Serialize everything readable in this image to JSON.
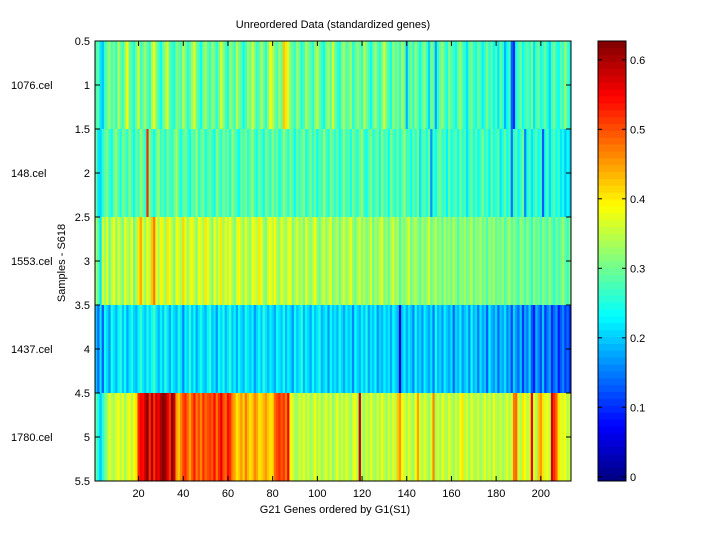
{
  "chart_data": {
    "type": "heatmap",
    "title": "Unreordered Data (standardized genes)",
    "xlabel": "G21 Genes ordered by G1(S1)",
    "ylabel": "Samples - S618",
    "xlim": [
      0.5,
      213.5
    ],
    "ylim": [
      0.5,
      5.5
    ],
    "xticks": [
      20,
      40,
      60,
      80,
      100,
      120,
      140,
      160,
      180,
      200
    ],
    "yticks": [
      "0.5",
      "1",
      "1.5",
      "2",
      "2.5",
      "3",
      "3.5",
      "4",
      "4.5",
      "5",
      "5.5"
    ],
    "row_labels": [
      "1076.cel",
      "148.cel",
      "1553.cel",
      "1437.cel",
      "1780.cel"
    ],
    "colormap": "jet",
    "clim": [
      -0.006,
      0.627
    ],
    "colorbar_ticks": [
      "0",
      "0.1",
      "0.2",
      "0.3",
      "0.4",
      "0.5",
      "0.6"
    ],
    "value_scale": 0.01,
    "rows": [
      [
        28,
        29,
        22,
        20,
        27,
        30,
        33,
        28,
        31,
        26,
        35,
        30,
        27,
        33,
        38,
        30,
        28,
        25,
        31,
        36,
        27,
        30,
        33,
        29,
        26,
        34,
        38,
        31,
        28,
        24,
        30,
        33,
        36,
        29,
        27,
        25,
        32,
        30,
        28,
        35,
        31,
        26,
        29,
        33,
        37,
        30,
        28,
        24,
        31,
        34,
        29,
        27,
        33,
        30,
        26,
        31,
        36,
        32,
        28,
        25,
        33,
        30,
        27,
        35,
        31,
        29,
        24,
        28,
        33,
        30,
        36,
        31,
        27,
        29,
        34,
        30,
        26,
        32,
        38,
        35,
        31,
        28,
        33,
        30,
        42,
        40,
        36,
        31,
        29,
        27,
        33,
        30,
        25,
        28,
        34,
        31,
        29,
        26,
        32,
        35,
        30,
        27,
        24,
        31,
        33,
        29,
        36,
        30,
        27,
        25,
        31,
        34,
        28,
        30,
        33,
        26,
        29,
        32,
        30,
        27,
        35,
        31,
        28,
        24,
        30,
        33,
        29,
        26,
        31,
        36,
        30,
        28,
        25,
        33,
        29,
        31,
        27,
        34,
        30,
        19,
        28,
        31,
        26,
        33,
        29,
        24,
        30,
        32,
        27,
        21,
        31,
        29,
        18,
        26,
        30,
        33,
        28,
        25,
        31,
        29,
        27,
        24,
        30,
        33,
        28,
        26,
        22,
        29,
        31,
        27,
        25,
        30,
        28,
        23,
        27,
        31,
        26,
        29,
        24,
        28,
        22,
        30,
        26,
        19,
        24,
        28,
        14,
        10,
        25,
        28,
        30,
        24,
        27,
        29,
        26,
        31,
        22,
        28,
        30,
        25,
        27,
        30,
        25,
        21,
        28,
        31,
        26,
        24,
        29,
        27,
        33,
        28,
        24
      ],
      [
        30,
        22,
        21,
        26,
        29,
        31,
        27,
        24,
        30,
        33,
        28,
        25,
        31,
        29,
        26,
        32,
        28,
        24,
        30,
        27,
        33,
        29,
        26,
        52,
        31,
        28,
        24,
        30,
        33,
        27,
        29,
        25,
        31,
        28,
        26,
        30,
        34,
        28,
        25,
        29,
        31,
        27,
        24,
        30,
        28,
        33,
        26,
        29,
        31,
        25,
        28,
        30,
        27,
        24,
        32,
        29,
        26,
        31,
        28,
        30,
        25,
        33,
        29,
        27,
        24,
        30,
        28,
        31,
        26,
        29,
        33,
        27,
        25,
        30,
        28,
        24,
        31,
        29,
        26,
        32,
        28,
        30,
        25,
        27,
        33,
        29,
        26,
        31,
        28,
        24,
        30,
        27,
        29,
        32,
        25,
        28,
        31,
        26,
        30,
        24,
        29,
        27,
        33,
        28,
        25,
        31,
        29,
        26,
        30,
        24,
        28,
        32,
        27,
        29,
        25,
        31,
        28,
        26,
        30,
        33,
        27,
        24,
        29,
        31,
        26,
        28,
        30,
        25,
        32,
        27,
        29,
        24,
        31,
        28,
        26,
        30,
        25,
        29,
        33,
        27,
        28,
        24,
        30,
        26,
        31,
        22,
        28,
        29,
        25,
        30,
        17,
        27,
        24,
        29,
        31,
        26,
        28,
        23,
        30,
        25,
        27,
        29,
        24,
        31,
        26,
        28,
        22,
        27,
        30,
        25,
        29,
        24,
        27,
        31,
        26,
        28,
        23,
        30,
        25,
        27,
        29,
        22,
        26,
        30,
        24,
        28,
        15,
        26,
        29,
        23,
        27,
        30,
        16,
        25,
        28,
        22,
        26,
        29,
        24,
        27,
        13,
        25,
        28,
        21,
        26,
        29,
        24,
        27,
        22,
        25,
        20,
        24,
        21
      ],
      [
        34,
        28,
        22,
        36,
        33,
        37,
        30,
        35,
        38,
        32,
        36,
        34,
        31,
        37,
        35,
        33,
        38,
        30,
        34,
        40,
        44,
        36,
        33,
        38,
        35,
        42,
        47,
        37,
        34,
        39,
        36,
        33,
        40,
        37,
        35,
        31,
        38,
        36,
        34,
        41,
        37,
        33,
        36,
        39,
        35,
        32,
        38,
        36,
        34,
        40,
        37,
        35,
        31,
        38,
        34,
        36,
        40,
        33,
        37,
        35,
        38,
        34,
        31,
        36,
        39,
        35,
        33,
        37,
        34,
        32,
        38,
        36,
        35,
        40,
        37,
        33,
        31,
        36,
        38,
        35,
        39,
        34,
        32,
        37,
        35,
        33,
        36,
        38,
        31,
        34,
        36,
        33,
        35,
        31,
        37,
        34,
        32,
        35,
        38,
        33,
        30,
        34,
        36,
        32,
        35,
        37,
        31,
        33,
        35,
        30,
        34,
        36,
        32,
        35,
        37,
        33,
        30,
        34,
        36,
        32,
        35,
        31,
        33,
        36,
        30,
        34,
        32,
        35,
        37,
        31,
        33,
        30,
        34,
        36,
        32,
        35,
        28,
        33,
        31,
        34,
        36,
        30,
        33,
        35,
        32,
        29,
        34,
        31,
        33,
        36,
        30,
        32,
        35,
        31,
        33,
        29,
        34,
        31,
        33,
        30,
        35,
        32,
        28,
        33,
        31,
        34,
        30,
        32,
        35,
        29,
        33,
        31,
        34,
        30,
        32,
        28,
        33,
        31,
        34,
        29,
        32,
        30,
        33,
        28,
        31,
        34,
        29,
        32,
        30,
        27,
        33,
        31,
        28,
        32,
        30,
        26,
        33,
        29,
        31,
        27,
        32,
        30,
        28,
        33,
        29,
        26,
        31,
        28,
        30,
        33,
        29,
        27,
        31
      ],
      [
        20,
        14,
        22,
        13,
        24,
        21,
        17,
        25,
        22,
        19,
        23,
        26,
        20,
        24,
        18,
        22,
        25,
        21,
        19,
        23,
        27,
        22,
        20,
        25,
        21,
        24,
        28,
        22,
        19,
        23,
        20,
        26,
        22,
        18,
        24,
        21,
        19,
        25,
        22,
        16,
        23,
        21,
        26,
        20,
        24,
        18,
        22,
        25,
        21,
        19,
        23,
        26,
        20,
        22,
        17,
        24,
        21,
        25,
        19,
        22,
        26,
        20,
        23,
        18,
        24,
        21,
        19,
        25,
        22,
        20,
        23,
        17,
        21,
        24,
        20,
        26,
        22,
        19,
        23,
        21,
        18,
        24,
        22,
        20,
        25,
        19,
        23,
        21,
        17,
        24,
        20,
        22,
        26,
        19,
        23,
        21,
        18,
        24,
        20,
        22,
        25,
        19,
        21,
        23,
        17,
        24,
        20,
        22,
        19,
        25,
        21,
        18,
        23,
        20,
        22,
        16,
        24,
        21,
        19,
        23,
        20,
        25,
        18,
        22,
        20,
        24,
        17,
        21,
        19,
        23,
        20,
        22,
        18,
        24,
        21,
        19,
        5,
        20,
        23,
        18,
        22,
        20,
        16,
        24,
        19,
        21,
        17,
        23,
        20,
        18,
        22,
        15,
        24,
        19,
        21,
        17,
        23,
        20,
        18,
        22,
        14,
        21,
        19,
        23,
        17,
        20,
        22,
        16,
        24,
        19,
        21,
        15,
        22,
        18,
        20,
        13,
        23,
        19,
        17,
        21,
        14,
        20,
        18,
        22,
        16,
        19,
        12,
        21,
        17,
        14,
        20,
        11,
        18,
        15,
        21,
        13,
        9,
        19,
        16,
        12,
        20,
        11,
        15,
        18,
        10,
        14,
        17,
        9,
        13,
        16,
        11,
        14,
        10
      ],
      [
        30,
        24,
        20,
        26,
        30,
        33,
        37,
        35,
        34,
        36,
        38,
        35,
        37,
        33,
        36,
        39,
        35,
        38,
        40,
        52,
        55,
        54,
        58,
        62,
        52,
        60,
        52,
        58,
        55,
        60,
        62,
        61,
        56,
        52,
        62,
        58,
        45,
        42,
        46,
        50,
        52,
        48,
        44,
        49,
        53,
        47,
        50,
        46,
        52,
        48,
        50,
        51,
        49,
        54,
        47,
        52,
        56,
        50,
        48,
        54,
        52,
        46,
        44,
        40,
        42,
        45,
        41,
        47,
        43,
        40,
        42,
        46,
        44,
        40,
        41,
        43,
        45,
        42,
        40,
        41,
        48,
        50,
        52,
        49,
        51,
        47,
        55,
        38,
        36,
        34,
        33,
        36,
        35,
        37,
        34,
        36,
        33,
        35,
        38,
        34,
        36,
        33,
        35,
        37,
        34,
        36,
        32,
        35,
        38,
        33,
        36,
        34,
        37,
        35,
        33,
        36,
        38,
        34,
        58,
        35,
        33,
        36,
        34,
        37,
        35,
        33,
        36,
        34,
        38,
        35,
        33,
        36,
        34,
        37,
        35,
        42,
        45,
        38,
        36,
        34,
        37,
        35,
        33,
        38,
        44,
        36,
        34,
        37,
        35,
        33,
        36,
        46,
        34,
        36,
        33,
        38,
        35,
        34,
        37,
        35,
        33,
        36,
        34,
        38,
        40,
        35,
        36,
        33,
        37,
        35,
        34,
        36,
        33,
        35,
        37,
        34,
        36,
        33,
        38,
        35,
        34,
        36,
        33,
        35,
        37,
        34,
        36,
        47,
        48,
        36,
        34,
        40,
        38,
        35,
        36,
        55,
        37,
        34,
        42,
        45,
        40,
        36,
        38,
        35,
        57,
        52,
        48,
        40,
        37,
        36,
        38,
        34,
        36
      ]
    ]
  }
}
